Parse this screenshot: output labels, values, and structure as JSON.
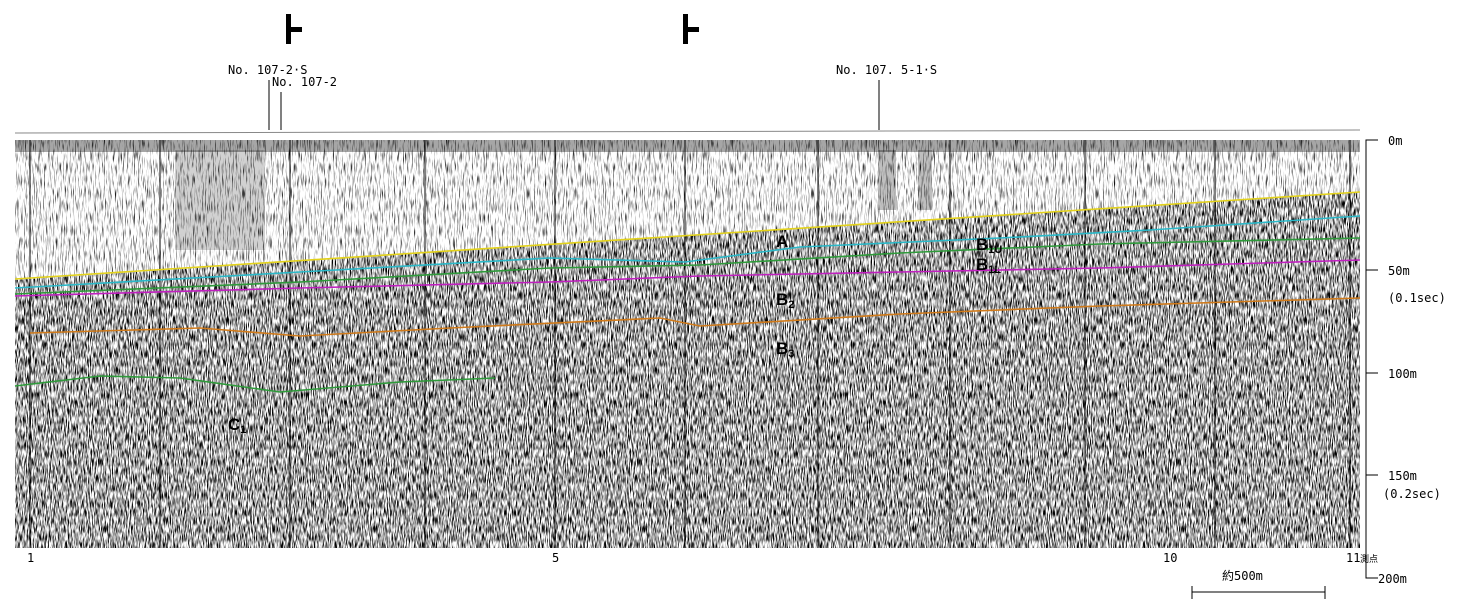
{
  "stations": [
    "No. 107-2·S",
    "No. 107-2",
    "No. 107. 5-1·S"
  ],
  "layers": [
    {
      "base": "A"
    },
    {
      "base": "B",
      "sub": "1U"
    },
    {
      "base": "B",
      "sub": "1L"
    },
    {
      "base": "B",
      "sub": "2"
    },
    {
      "base": "B",
      "sub": "3"
    },
    {
      "base": "C",
      "sub": "1"
    }
  ],
  "depth_axis": [
    "0m",
    "50m",
    "(0.1sec)",
    "100m",
    "150m",
    "(0.2sec)",
    "200m"
  ],
  "survey_points": {
    "labels": [
      "1",
      "5",
      "10",
      "11"
    ],
    "unit": "測点"
  },
  "scale": "約500m"
}
